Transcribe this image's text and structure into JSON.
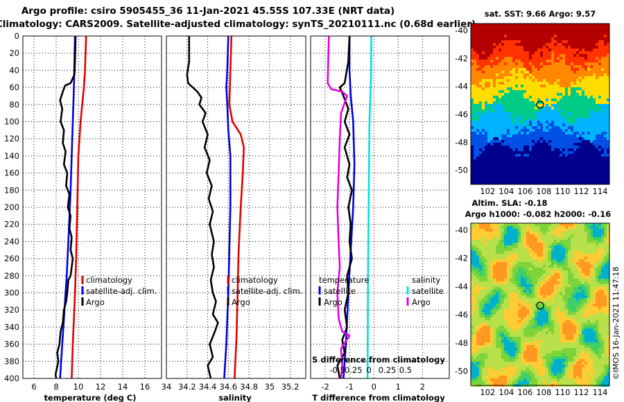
{
  "header": {
    "title_line1": "Argo profile: csiro 5905455_36 11-Jan-2021 45.55S 107.33E (NRT data)",
    "title_line2": "Climatology: CARS2009. Satellite-adjusted climatology: synTS_20210111.nc (0.68d earlier)"
  },
  "chart_data": [
    {
      "type": "line",
      "panel": "temperature",
      "xlabel": "temperature (deg C)",
      "xlim": [
        5,
        17.5
      ],
      "xticks": [
        "6",
        "8",
        "10",
        "12",
        "14",
        "16"
      ],
      "ylim": [
        400,
        0
      ],
      "yticks": [
        "0",
        "20",
        "40",
        "60",
        "80",
        "100",
        "120",
        "140",
        "160",
        "180",
        "200",
        "220",
        "240",
        "260",
        "280",
        "300",
        "320",
        "340",
        "360",
        "380",
        "400"
      ],
      "series": [
        {
          "name": "climatology",
          "color": "#e00000",
          "points": [
            [
              10.7,
              0
            ],
            [
              10.6,
              40
            ],
            [
              10.5,
              60
            ],
            [
              10.2,
              100
            ],
            [
              10.0,
              140
            ],
            [
              9.9,
              200
            ],
            [
              9.8,
              260
            ],
            [
              9.7,
              300
            ],
            [
              9.5,
              360
            ],
            [
              9.4,
              400
            ]
          ]
        },
        {
          "name": "satellite-adj. clim.",
          "color": "#0000e0",
          "points": [
            [
              9.7,
              0
            ],
            [
              9.6,
              60
            ],
            [
              9.45,
              120
            ],
            [
              9.3,
              180
            ],
            [
              9.1,
              240
            ],
            [
              8.95,
              280
            ],
            [
              8.75,
              320
            ],
            [
              8.55,
              360
            ],
            [
              8.35,
              400
            ]
          ]
        },
        {
          "name": "Argo",
          "color": "#000000",
          "points": [
            [
              9.75,
              0
            ],
            [
              9.72,
              20
            ],
            [
              9.65,
              45
            ],
            [
              9.3,
              55
            ],
            [
              8.8,
              58
            ],
            [
              8.6,
              65
            ],
            [
              8.35,
              75
            ],
            [
              8.55,
              85
            ],
            [
              8.4,
              100
            ],
            [
              8.7,
              110
            ],
            [
              8.6,
              125
            ],
            [
              8.85,
              135
            ],
            [
              8.7,
              150
            ],
            [
              9.0,
              160
            ],
            [
              8.9,
              175
            ],
            [
              9.2,
              185
            ],
            [
              9.05,
              200
            ],
            [
              9.3,
              210
            ],
            [
              9.2,
              225
            ],
            [
              9.4,
              235
            ],
            [
              9.3,
              250
            ],
            [
              9.5,
              260
            ],
            [
              9.4,
              270
            ],
            [
              9.3,
              280
            ],
            [
              9.1,
              285
            ],
            [
              9.0,
              300
            ],
            [
              8.9,
              310
            ],
            [
              8.7,
              320
            ],
            [
              8.6,
              335
            ],
            [
              8.4,
              345
            ],
            [
              8.3,
              360
            ],
            [
              8.1,
              370
            ],
            [
              8.2,
              380
            ],
            [
              7.95,
              395
            ],
            [
              8.0,
              400
            ]
          ]
        }
      ],
      "legend": [
        "climatology",
        "satellite-adj. clim.",
        "Argo"
      ]
    },
    {
      "type": "line",
      "panel": "salinity",
      "xlabel": "salinity",
      "xlim": [
        34.0,
        35.35
      ],
      "xticks": [
        "34",
        "34.2",
        "34.4",
        "34.6",
        "34.8",
        "35",
        "35.2"
      ],
      "ylim": [
        400,
        0
      ],
      "series": [
        {
          "name": "climatology",
          "color": "#e00000",
          "points": [
            [
              34.63,
              0
            ],
            [
              34.62,
              40
            ],
            [
              34.61,
              80
            ],
            [
              34.64,
              100
            ],
            [
              34.72,
              115
            ],
            [
              34.75,
              130
            ],
            [
              34.74,
              160
            ],
            [
              34.72,
              200
            ],
            [
              34.7,
              250
            ],
            [
              34.69,
              300
            ],
            [
              34.68,
              350
            ],
            [
              34.66,
              400
            ]
          ]
        },
        {
          "name": "satellite-adj. clim.",
          "color": "#0000e0",
          "points": [
            [
              34.6,
              0
            ],
            [
              34.59,
              40
            ],
            [
              34.58,
              60
            ],
            [
              34.59,
              80
            ],
            [
              34.6,
              110
            ],
            [
              34.62,
              140
            ],
            [
              34.62,
              200
            ],
            [
              34.61,
              250
            ],
            [
              34.6,
              300
            ],
            [
              34.58,
              360
            ],
            [
              34.56,
              400
            ]
          ]
        },
        {
          "name": "Argo",
          "color": "#000000",
          "points": [
            [
              34.22,
              0
            ],
            [
              34.22,
              30
            ],
            [
              34.2,
              45
            ],
            [
              34.21,
              55
            ],
            [
              34.3,
              65
            ],
            [
              34.34,
              72
            ],
            [
              34.32,
              80
            ],
            [
              34.38,
              90
            ],
            [
              34.35,
              100
            ],
            [
              34.4,
              115
            ],
            [
              34.37,
              130
            ],
            [
              34.42,
              145
            ],
            [
              34.39,
              160
            ],
            [
              34.44,
              175
            ],
            [
              34.41,
              190
            ],
            [
              34.45,
              205
            ],
            [
              34.42,
              220
            ],
            [
              34.46,
              240
            ],
            [
              34.44,
              255
            ],
            [
              34.46,
              270
            ],
            [
              34.43,
              285
            ],
            [
              34.45,
              300
            ],
            [
              34.48,
              310
            ],
            [
              34.45,
              325
            ],
            [
              34.5,
              335
            ],
            [
              34.47,
              345
            ],
            [
              34.42,
              360
            ],
            [
              34.45,
              375
            ],
            [
              34.4,
              385
            ],
            [
              34.43,
              400
            ]
          ]
        }
      ],
      "legend": [
        "climatology",
        "satellite-adj. clim.",
        "Argo"
      ]
    },
    {
      "type": "line",
      "panel": "differences",
      "xlabel": "T difference from climatology",
      "xlim": [
        -2.6,
        3.1
      ],
      "xticks": [
        "-2",
        "-1",
        "0",
        "1",
        "2"
      ],
      "top_xlabel": "S difference from climatology",
      "top_xticks": [
        "-0.5",
        "-0.25",
        "0",
        "0.25",
        "0.5"
      ],
      "ylim": [
        400,
        0
      ],
      "series": [
        {
          "name": "T satellite",
          "color": "#0000e0",
          "points": [
            [
              -1.0,
              0
            ],
            [
              -1.0,
              40
            ],
            [
              -0.95,
              70
            ],
            [
              -0.85,
              100
            ],
            [
              -0.8,
              150
            ],
            [
              -0.85,
              200
            ],
            [
              -0.95,
              250
            ],
            [
              -1.05,
              300
            ],
            [
              -1.15,
              360
            ],
            [
              -1.25,
              400
            ]
          ]
        },
        {
          "name": "T Argo",
          "color": "#000000",
          "points": [
            [
              -1.0,
              0
            ],
            [
              -1.05,
              30
            ],
            [
              -1.2,
              55
            ],
            [
              -1.4,
              60
            ],
            [
              -1.25,
              70
            ],
            [
              -1.05,
              85
            ],
            [
              -1.2,
              100
            ],
            [
              -1.0,
              115
            ],
            [
              -1.2,
              130
            ],
            [
              -1.0,
              150
            ],
            [
              -1.1,
              165
            ],
            [
              -0.9,
              180
            ],
            [
              -1.05,
              200
            ],
            [
              -0.95,
              220
            ],
            [
              -1.0,
              240
            ],
            [
              -0.9,
              260
            ],
            [
              -1.1,
              280
            ],
            [
              -1.05,
              300
            ],
            [
              -1.2,
              320
            ],
            [
              -1.1,
              340
            ],
            [
              -1.3,
              355
            ],
            [
              -1.2,
              370
            ],
            [
              -1.5,
              385
            ],
            [
              -1.4,
              400
            ]
          ]
        },
        {
          "name": "S satellite",
          "color": "#00e0e0",
          "points": [
            [
              -0.1,
              0
            ],
            [
              -0.12,
              50
            ],
            [
              -0.18,
              100
            ],
            [
              -0.2,
              160
            ],
            [
              -0.22,
              220
            ],
            [
              -0.24,
              280
            ],
            [
              -0.25,
              340
            ],
            [
              -0.26,
              400
            ]
          ]
        },
        {
          "name": "S Argo",
          "color": "#e000e0",
          "points": [
            [
              -1.85,
              0
            ],
            [
              -1.9,
              55
            ],
            [
              -1.75,
              62
            ],
            [
              -1.3,
              65
            ],
            [
              -1.1,
              70
            ],
            [
              -1.35,
              90
            ],
            [
              -1.4,
              120
            ],
            [
              -1.45,
              160
            ],
            [
              -1.5,
              200
            ],
            [
              -1.45,
              240
            ],
            [
              -1.4,
              270
            ],
            [
              -1.5,
              300
            ],
            [
              -1.45,
              330
            ],
            [
              -1.3,
              345
            ],
            [
              -1.0,
              350
            ],
            [
              -1.35,
              365
            ],
            [
              -1.3,
              385
            ],
            [
              -1.35,
              400
            ]
          ]
        }
      ],
      "legend": {
        "temperature_heading": "temperature",
        "salinity_heading": "salinity",
        "items": [
          "satellite",
          "Argo",
          "satellite",
          "Argo"
        ]
      }
    }
  ],
  "maps": {
    "sst": {
      "title": "sat. SST: 9.66 Argo: 9.57",
      "yticks": [
        "-40",
        "-42",
        "-44",
        "-46",
        "-48",
        "-50"
      ],
      "xticks": [
        "102",
        "104",
        "106",
        "108",
        "110",
        "112",
        "114"
      ],
      "colors": [
        "#b30000",
        "#ff3300",
        "#ff8800",
        "#ffdd00",
        "#c8e63c",
        "#00cc88",
        "#00b4ff",
        "#0050e6",
        "#00008c"
      ]
    },
    "sla": {
      "title_line1": "Altim. SLA: -0.18",
      "title_line2": "Argo h1000: -0.082 h2000: -0.16",
      "yticks": [
        "-40",
        "-42",
        "-44",
        "-46",
        "-48",
        "-50"
      ],
      "xticks": [
        "102",
        "104",
        "106",
        "108",
        "110",
        "112",
        "114"
      ],
      "colors": [
        "#ffcc33",
        "#ff9922",
        "#b8e04a",
        "#7cd43a",
        "#3fcf68",
        "#00b0cc"
      ]
    },
    "credit": "©IMOS 16-Jan-2021 11:47:18"
  }
}
